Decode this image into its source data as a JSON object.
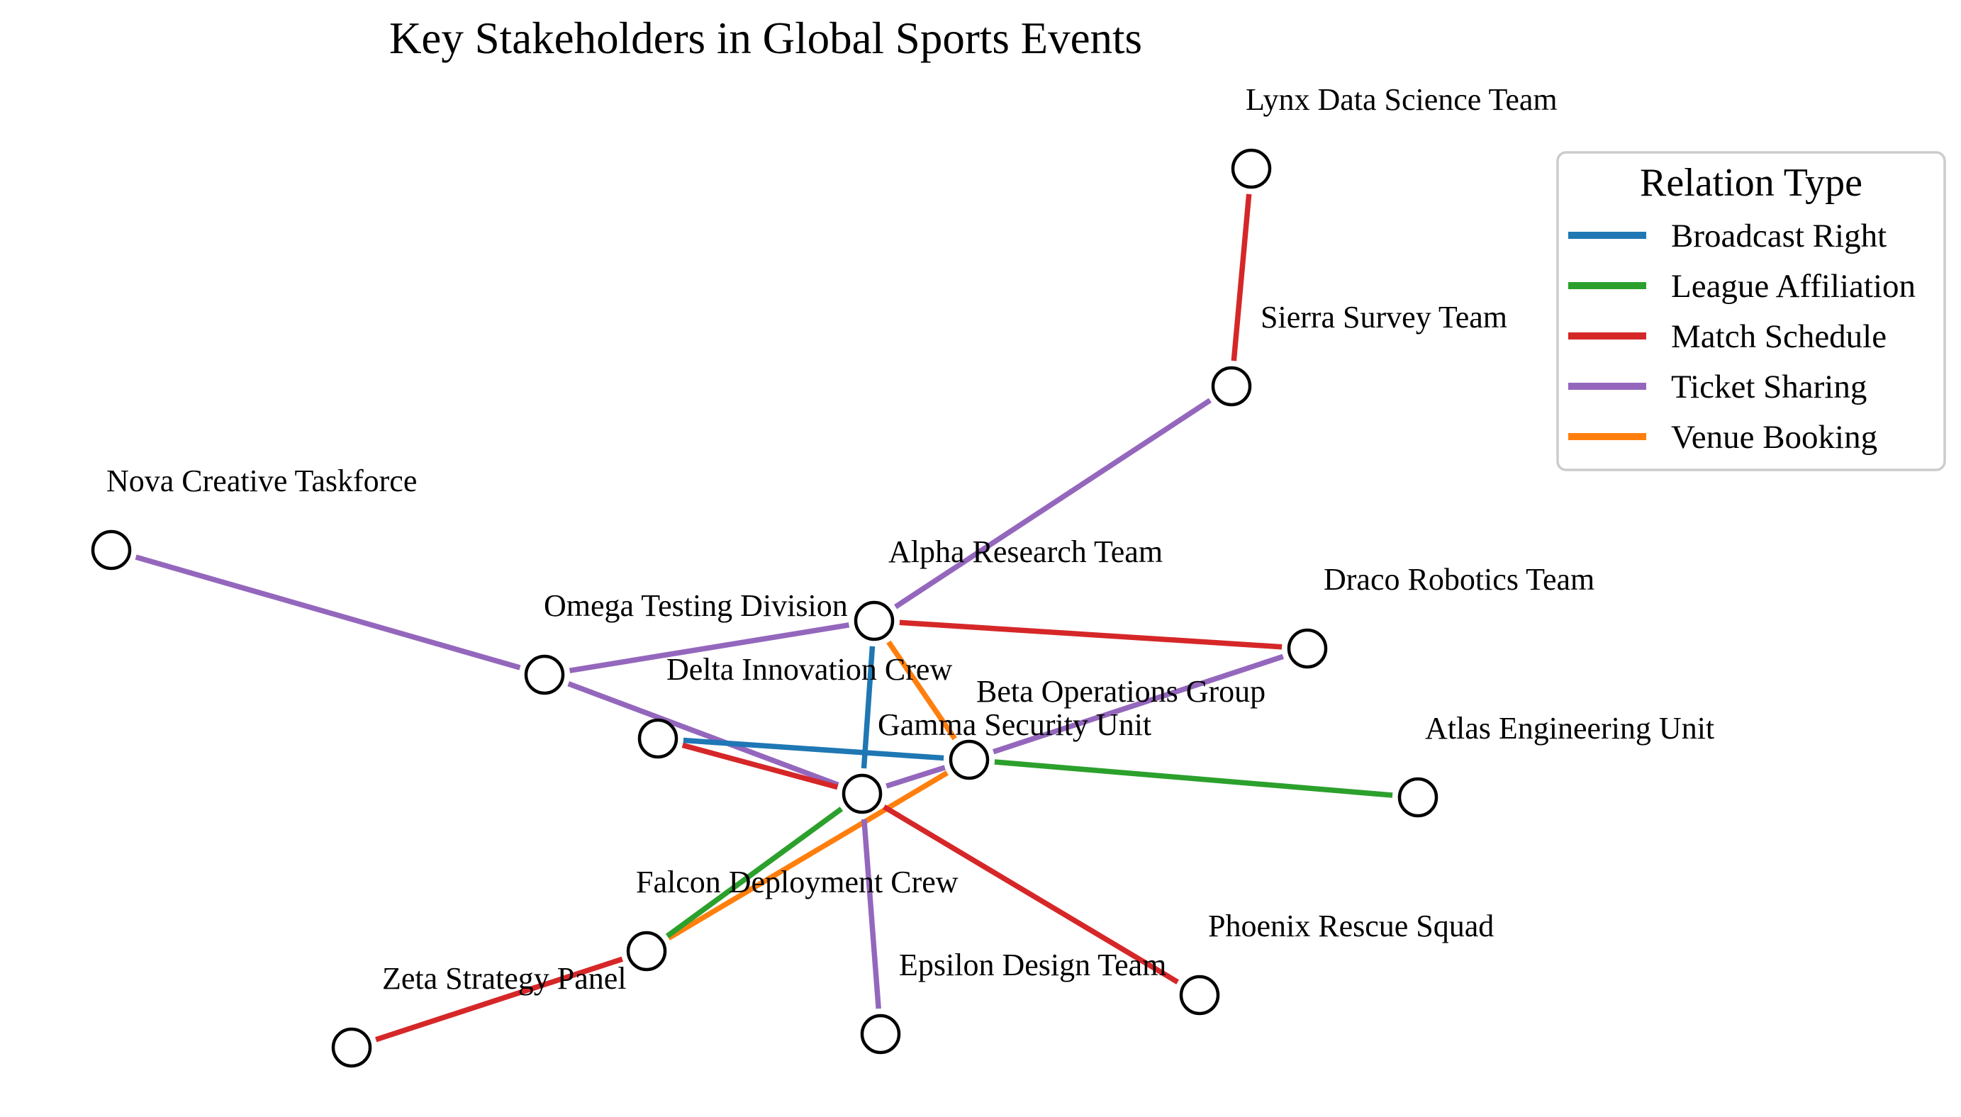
{
  "chart_data": {
    "type": "network",
    "title": "Key Stakeholders in Global Sports Events",
    "legend": {
      "title": "Relation Type",
      "placement": "top-right",
      "entries": [
        {
          "type": "Broadcast Right",
          "color": "#1f77b4"
        },
        {
          "type": "League Affiliation",
          "color": "#2ca02c"
        },
        {
          "type": "Match Schedule",
          "color": "#d62728"
        },
        {
          "type": "Ticket Sharing",
          "color": "#9467bd"
        },
        {
          "type": "Venue Booking",
          "color": "#ff7f0e"
        }
      ]
    },
    "nodes": [
      {
        "id": "lynx",
        "label": "Lynx Data Science Team"
      },
      {
        "id": "sierra",
        "label": "Sierra Survey Team"
      },
      {
        "id": "nova",
        "label": "Nova Creative Taskforce"
      },
      {
        "id": "alpha",
        "label": "Alpha Research Team"
      },
      {
        "id": "draco",
        "label": "Draco Robotics Team"
      },
      {
        "id": "omega",
        "label": "Omega Testing Division"
      },
      {
        "id": "delta",
        "label": "Delta Innovation Crew"
      },
      {
        "id": "beta",
        "label": "Beta Operations Group"
      },
      {
        "id": "gamma",
        "label": "Gamma Security Unit"
      },
      {
        "id": "atlas",
        "label": "Atlas Engineering Unit"
      },
      {
        "id": "falcon",
        "label": "Falcon Deployment Crew"
      },
      {
        "id": "phoenix",
        "label": "Phoenix Rescue Squad"
      },
      {
        "id": "epsilon",
        "label": "Epsilon Design Team"
      },
      {
        "id": "zeta",
        "label": "Zeta Strategy Panel"
      }
    ],
    "edges": [
      {
        "source": "lynx",
        "target": "sierra",
        "type": "Match Schedule"
      },
      {
        "source": "sierra",
        "target": "alpha",
        "type": "Ticket Sharing"
      },
      {
        "source": "nova",
        "target": "omega",
        "type": "Ticket Sharing"
      },
      {
        "source": "omega",
        "target": "alpha",
        "type": "Ticket Sharing"
      },
      {
        "source": "omega",
        "target": "gamma",
        "type": "Ticket Sharing"
      },
      {
        "source": "alpha",
        "target": "draco",
        "type": "Match Schedule"
      },
      {
        "source": "alpha",
        "target": "gamma",
        "type": "Broadcast Right"
      },
      {
        "source": "alpha",
        "target": "beta",
        "type": "Venue Booking"
      },
      {
        "source": "draco",
        "target": "beta",
        "type": "Ticket Sharing"
      },
      {
        "source": "beta",
        "target": "gamma",
        "type": "Ticket Sharing"
      },
      {
        "source": "delta",
        "target": "beta",
        "type": "Broadcast Right"
      },
      {
        "source": "delta",
        "target": "gamma",
        "type": "Match Schedule"
      },
      {
        "source": "beta",
        "target": "atlas",
        "type": "League Affiliation"
      },
      {
        "source": "beta",
        "target": "falcon",
        "type": "Venue Booking"
      },
      {
        "source": "gamma",
        "target": "falcon",
        "type": "League Affiliation"
      },
      {
        "source": "gamma",
        "target": "phoenix",
        "type": "Match Schedule"
      },
      {
        "source": "gamma",
        "target": "epsilon",
        "type": "Ticket Sharing"
      },
      {
        "source": "falcon",
        "target": "zeta",
        "type": "Match Schedule"
      }
    ]
  }
}
